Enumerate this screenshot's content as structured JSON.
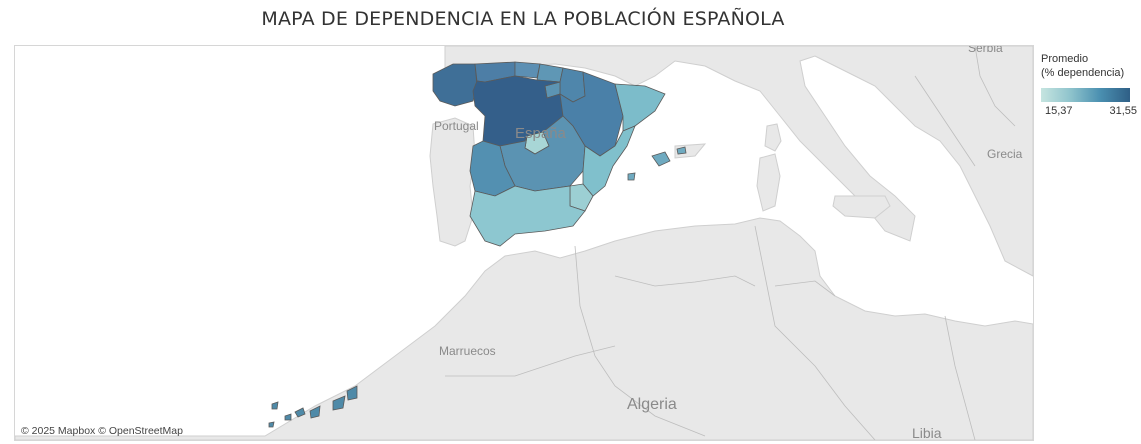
{
  "title": "MAPA DE DEPENDENCIA EN LA POBLACIÓN ESPAÑOLA",
  "attribution": "© 2025 Mapbox © OpenStreetMap",
  "legend": {
    "title_line1": "Promedio",
    "title_line2": "(% dependencia)",
    "min": "15,37",
    "max": "31,55",
    "color_min": "#c6e5e0",
    "color_max": "#2f5f86"
  },
  "map_labels": {
    "portugal": "Portugal",
    "espana": "España",
    "serbia": "Serbia",
    "grecia": "Grecia",
    "marruecos": "Marruecos",
    "algeria": "Algeria",
    "libia": "Libia"
  },
  "colors": {
    "land": "#e8e8e8",
    "sea": "#ffffff",
    "border": "#c4c4c4",
    "region_stroke": "#555555"
  }
}
